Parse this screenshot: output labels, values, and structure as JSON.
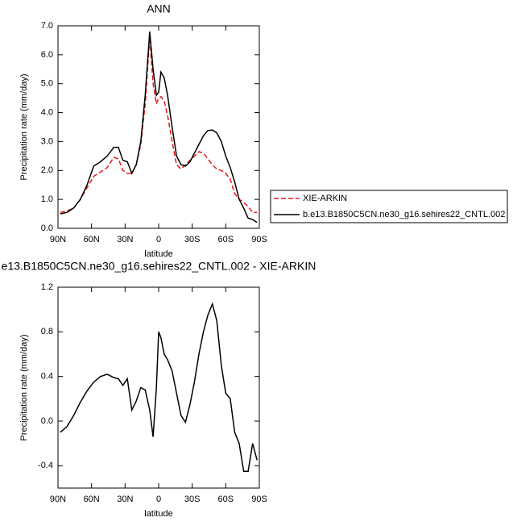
{
  "chart_data": [
    {
      "type": "line",
      "title": "ANN",
      "xlabel": "latitude",
      "ylabel": "Precipitation rate (mm/day)",
      "x": [
        88,
        82,
        76,
        70,
        64,
        58,
        52,
        46,
        40,
        36,
        32,
        28,
        24,
        20,
        16,
        12,
        8,
        5,
        2,
        0,
        -2,
        -5,
        -8,
        -12,
        -16,
        -20,
        -24,
        -28,
        -32,
        -36,
        -40,
        -44,
        -48,
        -52,
        -56,
        -60,
        -64,
        -68,
        -72,
        -76,
        -80,
        -84,
        -88
      ],
      "series": [
        {
          "name": "XIE-ARKIN",
          "color": "#e41a1c",
          "dash": "dashed",
          "values": [
            0.55,
            0.6,
            0.7,
            1.0,
            1.4,
            1.8,
            1.95,
            2.1,
            2.45,
            2.4,
            2.0,
            1.9,
            1.9,
            2.2,
            2.9,
            4.3,
            6.6,
            5.0,
            4.3,
            4.5,
            4.55,
            4.4,
            3.9,
            3.0,
            2.2,
            2.05,
            2.2,
            2.35,
            2.5,
            2.65,
            2.6,
            2.4,
            2.2,
            2.05,
            2.0,
            1.9,
            1.7,
            1.2,
            1.0,
            0.9,
            0.75,
            0.55,
            0.55
          ]
        },
        {
          "name": "b.e13.B1850C5CN.ne30_g16.sehires22_CNTL.002",
          "color": "#000000",
          "values": [
            0.5,
            0.55,
            0.7,
            1.0,
            1.5,
            2.15,
            2.3,
            2.5,
            2.8,
            2.8,
            2.35,
            2.3,
            1.9,
            2.2,
            3.0,
            4.6,
            6.8,
            5.5,
            4.6,
            4.7,
            5.4,
            5.2,
            4.6,
            3.5,
            2.5,
            2.2,
            2.15,
            2.3,
            2.6,
            2.9,
            3.2,
            3.38,
            3.4,
            3.3,
            3.0,
            2.5,
            2.1,
            1.6,
            1.0,
            0.7,
            0.35,
            0.3,
            0.2
          ]
        }
      ],
      "xlim": [
        90,
        -90
      ],
      "xticks": [
        {
          "value": 90,
          "label": "90N"
        },
        {
          "value": 60,
          "label": "60N"
        },
        {
          "value": 30,
          "label": "30N"
        },
        0,
        {
          "value": -30,
          "label": "30S"
        },
        {
          "value": -60,
          "label": "60S"
        },
        {
          "value": -90,
          "label": "90S"
        }
      ],
      "ylim": [
        0,
        7
      ],
      "yticks": [
        {
          "value": 0,
          "label": "0.0"
        },
        {
          "value": 1,
          "label": "1.0"
        },
        {
          "value": 2,
          "label": "2.0"
        },
        {
          "value": 3,
          "label": "3.0"
        },
        {
          "value": 4,
          "label": "4.0"
        },
        {
          "value": 5,
          "label": "5.0"
        },
        {
          "value": 6,
          "label": "6.0"
        },
        {
          "value": 7,
          "label": "7.0"
        }
      ],
      "legend": "right"
    },
    {
      "type": "line",
      "title": "e13.B1850C5CN.ne30_g16.sehires22_CNTL.002 - XIE-ARKIN",
      "xlabel": "latitude",
      "ylabel": "Precipitation rate (mm/day)",
      "x": [
        88,
        82,
        76,
        70,
        64,
        58,
        52,
        46,
        40,
        36,
        32,
        28,
        24,
        20,
        16,
        12,
        8,
        5,
        2,
        0,
        -2,
        -5,
        -8,
        -12,
        -16,
        -20,
        -24,
        -28,
        -32,
        -36,
        -40,
        -44,
        -48,
        -52,
        -56,
        -60,
        -64,
        -68,
        -72,
        -76,
        -80,
        -84,
        -88
      ],
      "values": [
        -0.1,
        -0.05,
        0.05,
        0.17,
        0.27,
        0.35,
        0.4,
        0.42,
        0.39,
        0.38,
        0.32,
        0.38,
        0.1,
        0.18,
        0.3,
        0.28,
        0.1,
        -0.14,
        0.3,
        0.8,
        0.75,
        0.6,
        0.55,
        0.45,
        0.25,
        0.05,
        -0.01,
        0.15,
        0.35,
        0.6,
        0.8,
        0.95,
        1.05,
        0.9,
        0.5,
        0.25,
        0.2,
        -0.1,
        -0.2,
        -0.45,
        -0.45,
        -0.2,
        -0.35
      ],
      "color": "#000000",
      "xlim": [
        90,
        -90
      ],
      "xticks": [
        {
          "value": 90,
          "label": "90N"
        },
        {
          "value": 60,
          "label": "60N"
        },
        {
          "value": 30,
          "label": "30N"
        },
        0,
        {
          "value": -30,
          "label": "30S"
        },
        {
          "value": -60,
          "label": "60S"
        },
        {
          "value": -90,
          "label": "90S"
        }
      ],
      "ylim": [
        -0.6,
        1.2
      ],
      "yticks": [
        -0.4,
        {
          "value": 0,
          "label": "0.0"
        },
        0.4,
        0.8,
        1.2
      ]
    }
  ]
}
